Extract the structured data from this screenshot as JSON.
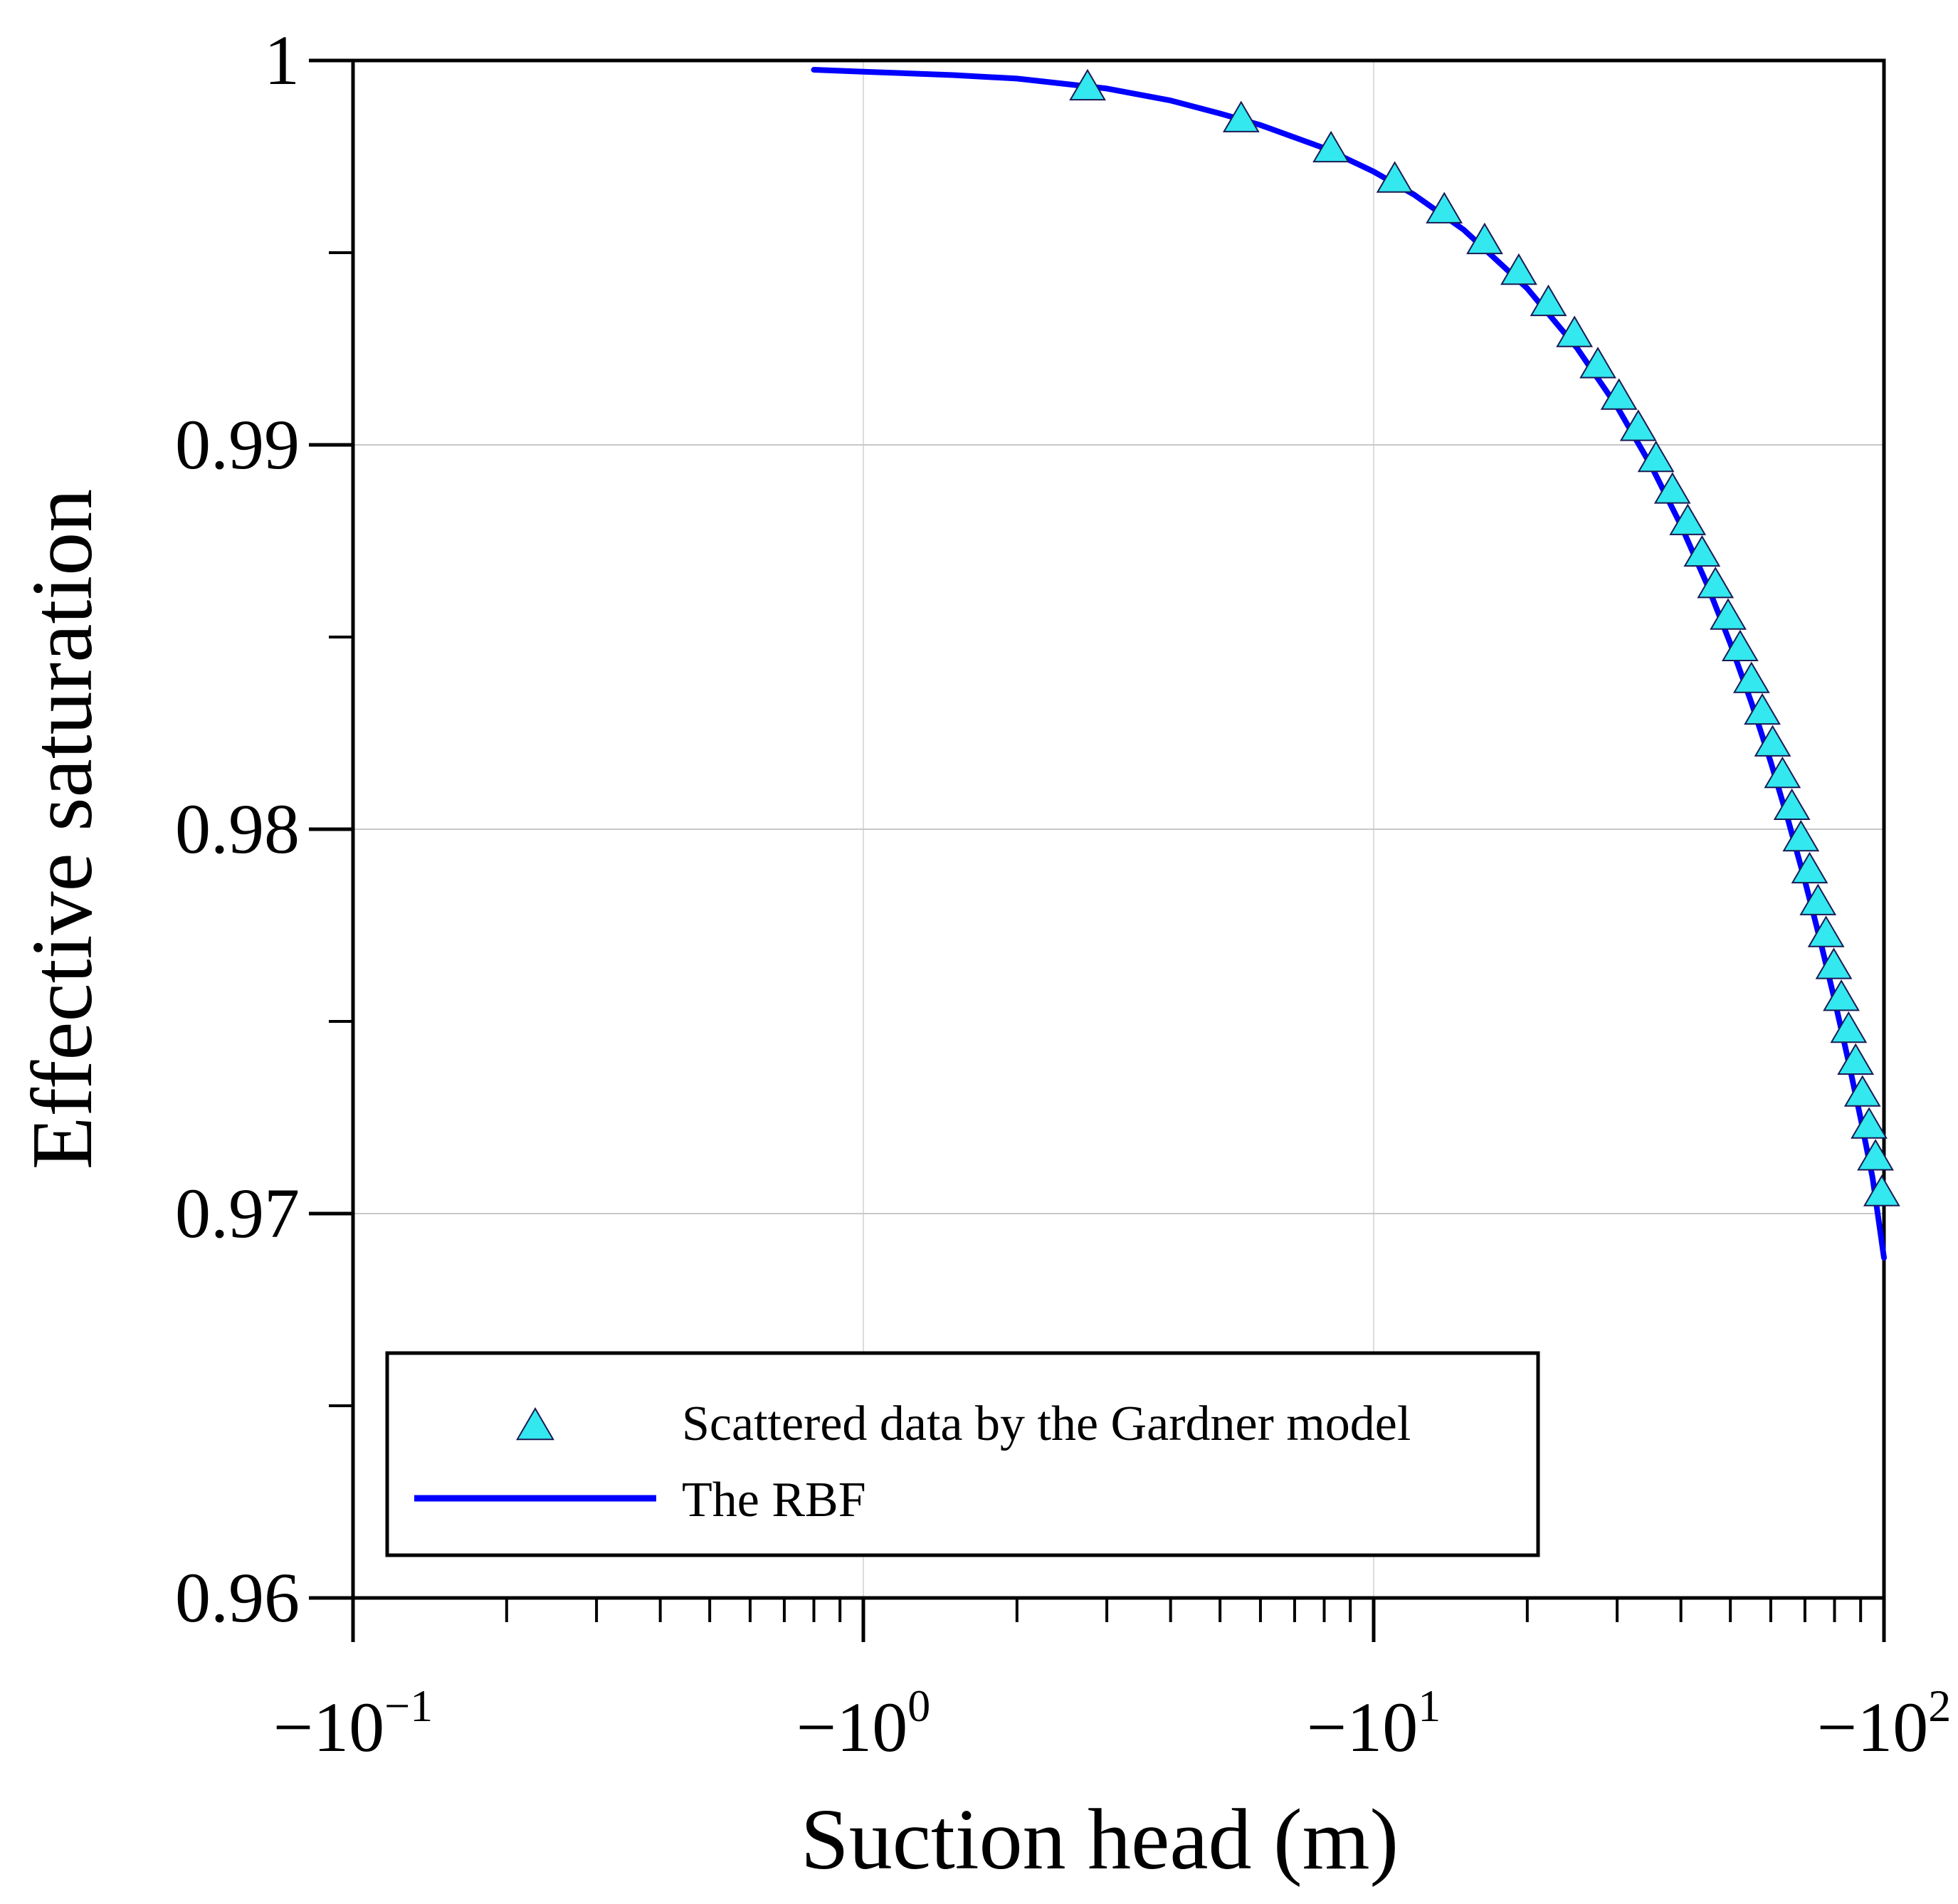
{
  "chart_data": {
    "type": "line",
    "title": "",
    "xlabel": "Suction head (m)",
    "ylabel": "Effective saturation",
    "x_scale": "log",
    "x_axis_sign": "negative",
    "xlim": [
      -0.1,
      -100
    ],
    "ylim": [
      0.96,
      1.0
    ],
    "grid": true,
    "legend_position": "bottom-left",
    "x_tick_labels": [
      {
        "value": -0.1,
        "base": "−10",
        "exp": "−1"
      },
      {
        "value": -1,
        "base": "−10",
        "exp": "0"
      },
      {
        "value": -10,
        "base": "−10",
        "exp": "1"
      },
      {
        "value": -100,
        "base": "−10",
        "exp": "2"
      }
    ],
    "y_ticks": [
      {
        "value": 0.96,
        "label": "0.96"
      },
      {
        "value": 0.97,
        "label": "0.97"
      },
      {
        "value": 0.98,
        "label": "0.98"
      },
      {
        "value": 0.99,
        "label": "0.99"
      },
      {
        "value": 1.0,
        "label": "1"
      }
    ],
    "series": [
      {
        "name": "Scattered data by the Gardner model",
        "kind": "scatter",
        "marker": "triangle",
        "color": "#33e8ee",
        "x": [
          -2.75,
          -5.5,
          -8.25,
          -11,
          -13.75,
          -16.5,
          -19.25,
          -22,
          -24.75,
          -27.5,
          -30.25,
          -33,
          -35.75,
          -38.5,
          -41.25,
          -44,
          -46.75,
          -49.5,
          -52.25,
          -55,
          -57.75,
          -60.5,
          -63.25,
          -66,
          -68.75,
          -71.5,
          -74.25,
          -77,
          -79.75,
          -82.5,
          -85.25,
          -88,
          -90.75,
          -93.5,
          -96.25,
          -99
        ],
        "y": [
          0.99932,
          0.99849,
          0.99771,
          0.99692,
          0.99612,
          0.99532,
          0.99452,
          0.99371,
          0.9929,
          0.99209,
          0.99127,
          0.99046,
          0.98965,
          0.98883,
          0.98801,
          0.98719,
          0.98637,
          0.98555,
          0.98473,
          0.9839,
          0.98308,
          0.98225,
          0.98143,
          0.9806,
          0.97978,
          0.97895,
          0.97812,
          0.97729,
          0.97646,
          0.97563,
          0.9748,
          0.97397,
          0.97314,
          0.97231,
          0.97148,
          0.97055
        ]
      },
      {
        "name": "The RBF",
        "kind": "line",
        "color": "#0000ff",
        "x": [
          -0.8,
          -1,
          -1.5,
          -2,
          -3,
          -4,
          -5,
          -6,
          -8,
          -10,
          -12,
          -15,
          -20,
          -25,
          -30,
          -35,
          -40,
          -45,
          -50,
          -55,
          -60,
          -65,
          -70,
          -75,
          -80,
          -85,
          -90,
          -95,
          -100
        ],
        "y": [
          0.99976,
          0.99971,
          0.99962,
          0.99953,
          0.99927,
          0.99896,
          0.99862,
          0.99832,
          0.99772,
          0.99711,
          0.99651,
          0.9956,
          0.99407,
          0.99253,
          0.99099,
          0.98945,
          0.98791,
          0.98637,
          0.98483,
          0.98329,
          0.98175,
          0.9802,
          0.97866,
          0.97711,
          0.97557,
          0.97402,
          0.97248,
          0.97093,
          0.96885
        ]
      }
    ]
  }
}
